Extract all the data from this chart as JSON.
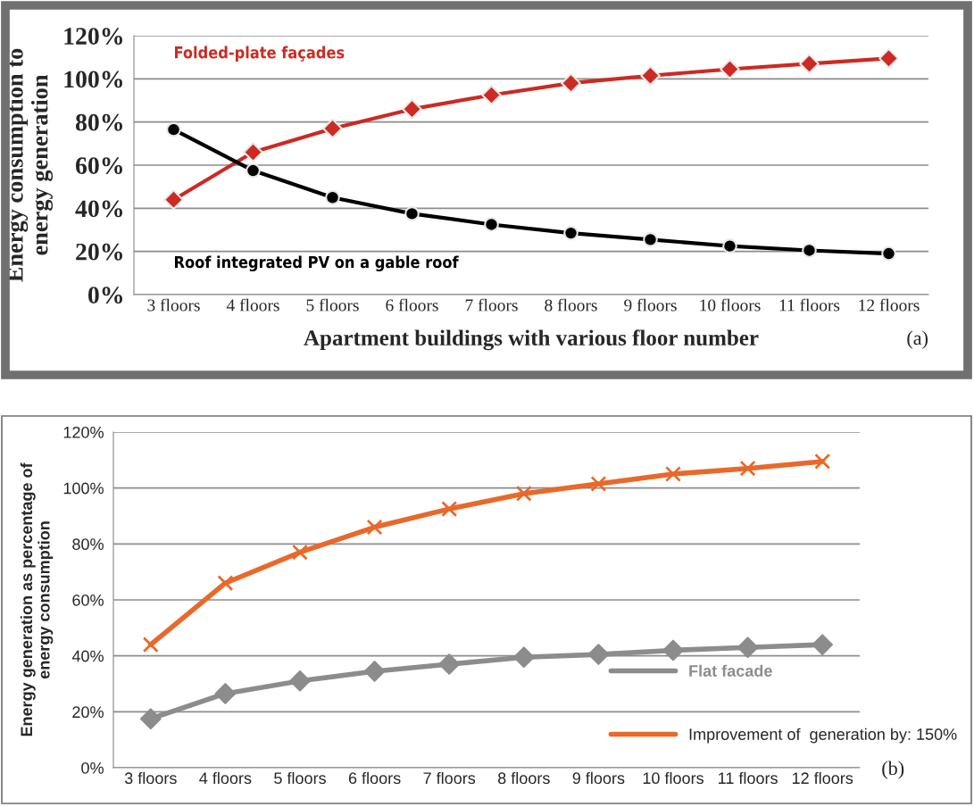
{
  "chart_data": [
    {
      "type": "line",
      "xlabel": "Apartment buildings with various floor number",
      "ylabel": "Energy consumption to\nenergy generation",
      "categories": [
        "3 floors",
        "4 floors",
        "5 floors",
        "6 floors",
        "7 floors",
        "8 floors",
        "9 floors",
        "10 floors",
        "11 floors",
        "12 floors"
      ],
      "series": [
        {
          "name": "Folded-plate façades",
          "color": "#cc2a22",
          "marker": "diamond",
          "values": [
            44,
            66,
            77,
            86,
            92.5,
            98,
            101.5,
            104.5,
            107,
            109.5
          ]
        },
        {
          "name": "Roof integrated PV on a gable roof",
          "color": "#000000",
          "marker": "circle",
          "values": [
            76.5,
            57.5,
            45,
            37.5,
            32.5,
            28.5,
            25.5,
            22.5,
            20.5,
            19
          ]
        }
      ],
      "ylim": [
        0,
        120
      ],
      "yticks": [
        {
          "value": 0,
          "label": "0%"
        },
        {
          "value": 20,
          "label": "20%"
        },
        {
          "value": 40,
          "label": "40%"
        },
        {
          "value": 60,
          "label": "60%"
        },
        {
          "value": 80,
          "label": "80%"
        },
        {
          "value": 100,
          "label": "100%"
        },
        {
          "value": 120,
          "label": "120%"
        }
      ],
      "grid": "y",
      "legend": false,
      "line_style": "solid",
      "annotations": [
        "(a)"
      ]
    },
    {
      "type": "line",
      "ylabel": "Energy generation as percentage of\nenergy consumption",
      "categories": [
        "3 floors",
        "4 floors",
        "5 floors",
        "6 floors",
        "7 floors",
        "8 floors",
        "9 floors",
        "10 floors",
        "11 floors",
        "12 floors"
      ],
      "series": [
        {
          "name": "Flat facade",
          "color": "#8c8c8c",
          "marker": "diamond",
          "values": [
            17.5,
            26.5,
            31,
            34.5,
            37,
            39.5,
            40.5,
            42,
            43,
            44
          ]
        },
        {
          "name": "Improvement of  generation by: 150%",
          "color": "#e8692a",
          "marker": "cross",
          "values": [
            44,
            66,
            77,
            86,
            92.5,
            98,
            101.5,
            105,
            107,
            109.5
          ]
        }
      ],
      "ylim": [
        0,
        120
      ],
      "yticks": [
        {
          "value": 0,
          "label": "0%"
        },
        {
          "value": 20,
          "label": "20%"
        },
        {
          "value": 40,
          "label": "40%"
        },
        {
          "value": 60,
          "label": "60%"
        },
        {
          "value": 80,
          "label": "80%"
        },
        {
          "value": 100,
          "label": "100%"
        },
        {
          "value": 120,
          "label": "120%"
        }
      ],
      "grid": "y",
      "legend": "bottom right",
      "line_style": "solid",
      "annotations": [
        "(b)"
      ]
    }
  ]
}
